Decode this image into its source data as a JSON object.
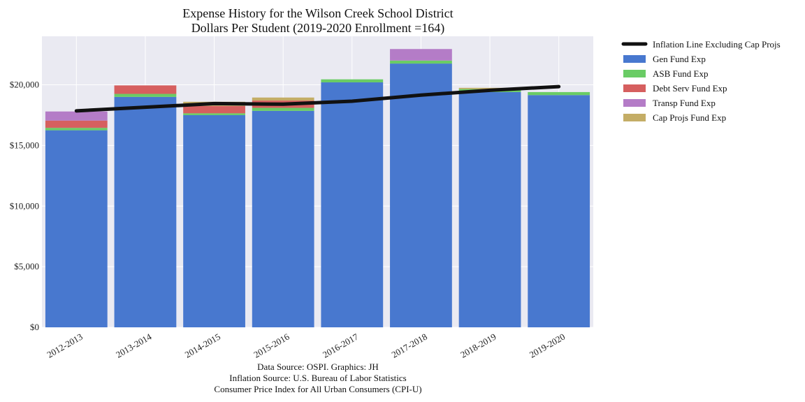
{
  "chart_data": {
    "type": "bar",
    "stacked": true,
    "title": "Expense History for the Wilson Creek School District",
    "subtitle": "Dollars Per Student (2019-2020 Enrollment =164)",
    "xlabel": "",
    "ylabel": "",
    "ylim": [
      0,
      24000
    ],
    "yticks": [
      0,
      5000,
      10000,
      15000,
      20000
    ],
    "ytick_labels": [
      "$0",
      "$5,000",
      "$10,000",
      "$15,000",
      "$20,000"
    ],
    "grid": true,
    "legend_position": "outside-right",
    "categories": [
      "2012-2013",
      "2013-2014",
      "2014-2015",
      "2015-2016",
      "2016-2017",
      "2017-2018",
      "2018-2019",
      "2019-2020"
    ],
    "series": [
      {
        "name": "Gen Fund Exp",
        "color": "#4878CF",
        "values": [
          16250,
          19000,
          17500,
          17850,
          20200,
          21750,
          19400,
          19150
        ]
      },
      {
        "name": "ASB Fund Exp",
        "color": "#6ACC65",
        "values": [
          200,
          250,
          150,
          250,
          250,
          250,
          250,
          250
        ]
      },
      {
        "name": "Debt Serv Fund Exp",
        "color": "#D65F5F",
        "values": [
          600,
          700,
          600,
          600,
          0,
          0,
          0,
          0
        ]
      },
      {
        "name": "Transp Fund Exp",
        "color": "#B47CC7",
        "values": [
          750,
          0,
          0,
          0,
          0,
          950,
          0,
          0
        ]
      },
      {
        "name": "Cap Projs Fund Exp",
        "color": "#C4AD66",
        "values": [
          0,
          0,
          350,
          250,
          0,
          0,
          100,
          0
        ]
      }
    ],
    "line": {
      "name": "Inflation Line Excluding Cap Projs",
      "color": "#111111",
      "values": [
        17850,
        18150,
        18450,
        18400,
        18650,
        19150,
        19550,
        19850
      ]
    }
  },
  "footer": {
    "lines": [
      "Data Source: OSPI. Graphics: JH",
      "Inflation Source: U.S. Bureau of Labor Statistics",
      "Consumer Price Index for All Urban Consumers (CPI-U)"
    ]
  }
}
